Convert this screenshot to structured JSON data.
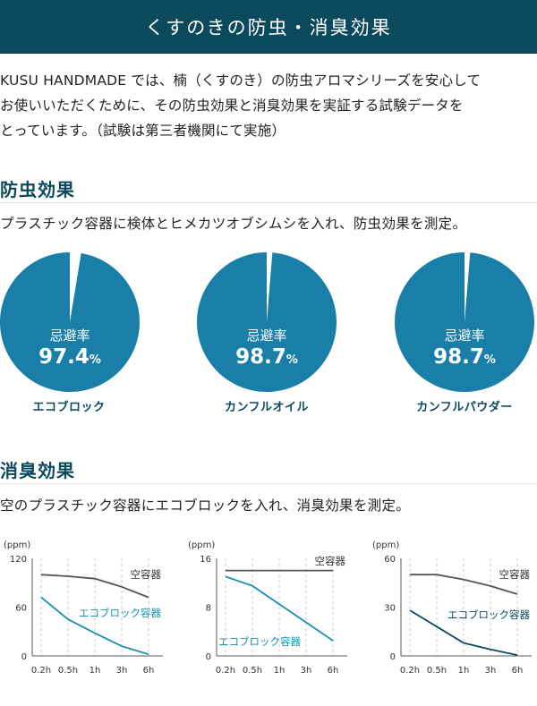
{
  "banner": {
    "title": "くすのきの防虫・消臭効果"
  },
  "intro": {
    "line1": "KUSU HANDMADE では、楠（くすのき）の防虫アロマシリーズを安心して",
    "line2": "お使いいただくために、その防虫効果と消臭効果を実証する試験データを",
    "line3": "とっています。（試験は第三者機関にて実施）"
  },
  "insect": {
    "title": "防虫効果",
    "description": "プラスチック容器に検体とヒメカツオブシムシを入れ、防虫効果を測定。",
    "pies": [
      {
        "caption": "エコブロック",
        "label": "忌避率",
        "value": "97.4",
        "unit": "%",
        "fraction": 0.974
      },
      {
        "caption": "カンフルオイル",
        "label": "忌避率",
        "value": "98.7",
        "unit": "%",
        "fraction": 0.987
      },
      {
        "caption": "カンフルパウダー",
        "label": "忌避率",
        "value": "98.7",
        "unit": "%",
        "fraction": 0.987
      }
    ]
  },
  "deodor": {
    "title": "消臭効果",
    "description": "空のプラスチック容器にエコブロックを入れ、消臭効果を測定。"
  },
  "colors": {
    "primary": "#0b4a5c",
    "pie": "#1a7fa8",
    "empty_line": "#555555",
    "eco_line_1": "#1a8fb0",
    "eco_line_3": "#0b4a5c"
  },
  "chart_data": [
    {
      "type": "line",
      "unit_label": "(ppm)",
      "x": [
        "0.2h",
        "0.5h",
        "1h",
        "3h",
        "6h"
      ],
      "yticks": [
        "120",
        "60",
        "0"
      ],
      "ylim": [
        0,
        120
      ],
      "series": [
        {
          "name": "空容器",
          "values": [
            100,
            98,
            95,
            85,
            72
          ]
        },
        {
          "name": "エコブロック容器",
          "values": [
            72,
            45,
            28,
            12,
            2
          ]
        }
      ]
    },
    {
      "type": "line",
      "unit_label": "(ppm)",
      "x": [
        "0.2h",
        "0.5h",
        "1h",
        "3h",
        "6h"
      ],
      "yticks": [
        "16",
        "8",
        "0"
      ],
      "ylim": [
        0,
        16
      ],
      "series": [
        {
          "name": "空容器",
          "values": [
            14,
            14,
            14,
            14,
            14
          ]
        },
        {
          "name": "エコブロック容器",
          "values": [
            13,
            11.5,
            8.5,
            5.5,
            2.5
          ]
        }
      ]
    },
    {
      "type": "line",
      "unit_label": "(ppm)",
      "x": [
        "0.2h",
        "0.5h",
        "1h",
        "3h",
        "6h"
      ],
      "yticks": [
        "60",
        "30",
        "0"
      ],
      "ylim": [
        0,
        60
      ],
      "series": [
        {
          "name": "空容器",
          "values": [
            50,
            50,
            47,
            43,
            38
          ]
        },
        {
          "name": "エコブロック容器",
          "values": [
            28,
            18,
            8,
            4,
            0.5
          ]
        }
      ]
    }
  ]
}
